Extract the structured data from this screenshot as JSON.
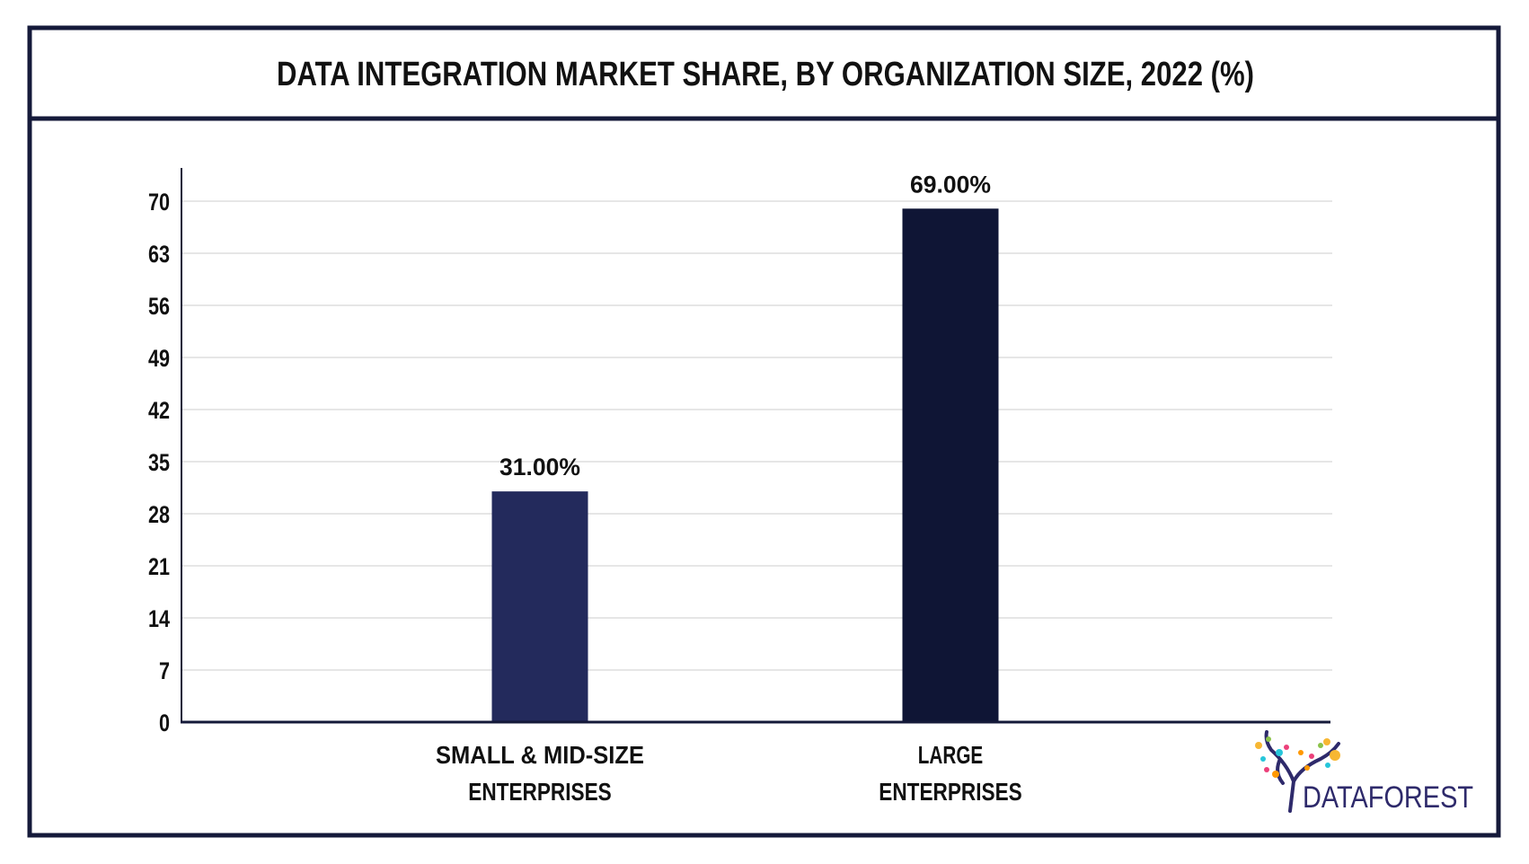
{
  "chart_data": {
    "type": "bar",
    "title": "DATA INTEGRATION MARKET SHARE, BY ORGANIZATION SIZE, 2022 (%)",
    "categories": [
      "SMALL & MID-SIZE ENTERPRISES",
      "LARGE ENTERPRISES"
    ],
    "category_lines": [
      [
        "SMALL & MID-SIZE",
        "ENTERPRISES"
      ],
      [
        "LARGE",
        "ENTERPRISES"
      ]
    ],
    "values": [
      31.0,
      69.0
    ],
    "data_labels": [
      "31.00%",
      "69.00%"
    ],
    "bar_colors": [
      "#232a5c",
      "#0f1535"
    ],
    "xlabel": "",
    "ylabel": "",
    "ylim": [
      0,
      70
    ],
    "yticks": [
      0,
      7,
      14,
      21,
      28,
      35,
      42,
      49,
      56,
      63,
      70
    ],
    "grid": true,
    "legend": "none"
  },
  "logo": {
    "text": "DATAFOREST",
    "color": "#2e2a6b"
  },
  "colors": {
    "frame": "#151a3a",
    "grid": "#e6e6e6"
  }
}
